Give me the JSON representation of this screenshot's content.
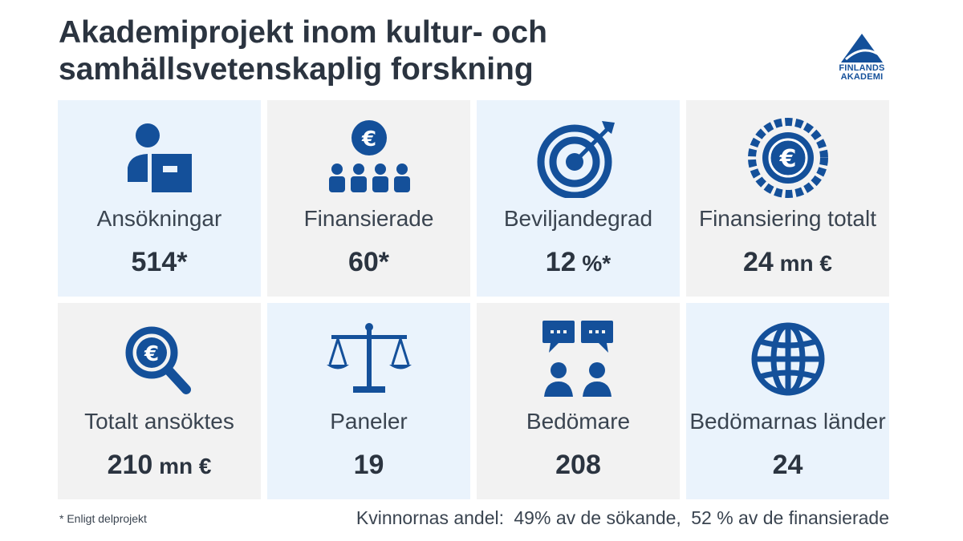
{
  "title": "Akademiprojekt inom kultur- och samhällsvetenskaplig forskning",
  "logo": {
    "line1": "FINLANDS",
    "line2": "AKADEMI"
  },
  "accent_color": "#14509a",
  "cards": [
    {
      "icon": "applicant-icon",
      "label": "Ansökningar",
      "value": "514*",
      "unit": ""
    },
    {
      "icon": "funded-group-icon",
      "label": "Finansierade",
      "value": "60*",
      "unit": ""
    },
    {
      "icon": "target-icon",
      "label": "Beviljandegrad",
      "value": "12",
      "unit": " %*"
    },
    {
      "icon": "euro-coin-icon",
      "label": "Finansiering totalt",
      "value": "24",
      "unit": " mn €"
    },
    {
      "icon": "euro-magnifier-icon",
      "label": "Totalt ansöktes",
      "value": "210",
      "unit": " mn €"
    },
    {
      "icon": "scales-icon",
      "label": "Paneler",
      "value": "19",
      "unit": ""
    },
    {
      "icon": "reviewers-icon",
      "label": "Bedömare",
      "value": "208",
      "unit": ""
    },
    {
      "icon": "globe-icon",
      "label": "Bedömarnas länder",
      "value": "24",
      "unit": ""
    }
  ],
  "footnote": "* Enligt delprojekt",
  "women_share": {
    "prefix": "Kvinnornas andel:",
    "applicants": "49% av de sökande,",
    "funded": "52 % av de finansierade"
  }
}
